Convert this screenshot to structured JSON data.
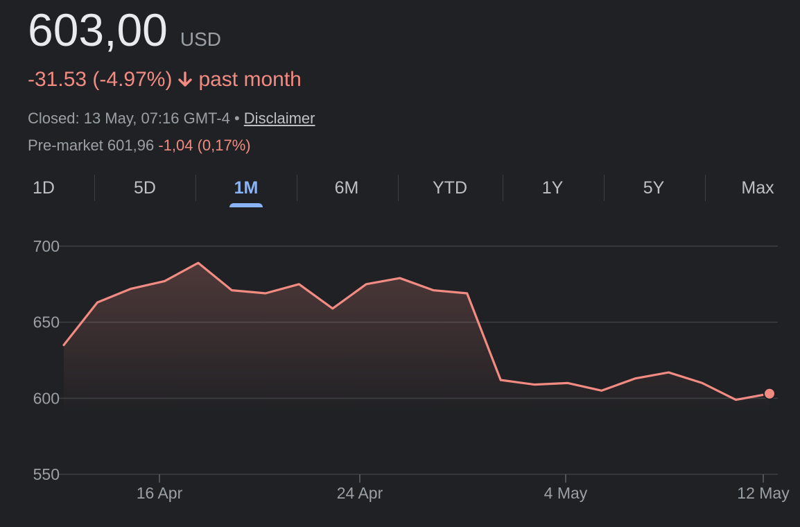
{
  "quote": {
    "price": "603,00",
    "currency": "USD",
    "change": "-31.53 (-4.97%)",
    "period": "past month",
    "direction_icon": "arrow-down-icon",
    "closed_text": "Closed: 13 May, 07:16 GMT-4",
    "separator": "•",
    "disclaimer": "Disclaimer",
    "premarket_label": "Pre-market 601,96",
    "premarket_change": "-1,04 (0,17%)"
  },
  "tabs": [
    "1D",
    "5D",
    "1M",
    "6M",
    "YTD",
    "1Y",
    "5Y",
    "Max"
  ],
  "active_tab": "1M",
  "colors": {
    "background": "#202124",
    "negative": "#f28b82",
    "accent": "#8ab4f8",
    "text_primary": "#e8eaed",
    "text_secondary": "#9aa0a6"
  },
  "chart_data": {
    "type": "area",
    "title": "",
    "xlabel": "",
    "ylabel": "",
    "ylim": [
      550,
      700
    ],
    "yticks": [
      700,
      650,
      600,
      550
    ],
    "xticks": [
      "16 Apr",
      "24 Apr",
      "4 May",
      "12 May"
    ],
    "grid": true,
    "series": [
      {
        "values": [
          635,
          663,
          672,
          677,
          689,
          671,
          669,
          675,
          659,
          675,
          679,
          671,
          669,
          612,
          609,
          610,
          605,
          613,
          617,
          610,
          599,
          603
        ]
      }
    ],
    "last_value": 603
  }
}
